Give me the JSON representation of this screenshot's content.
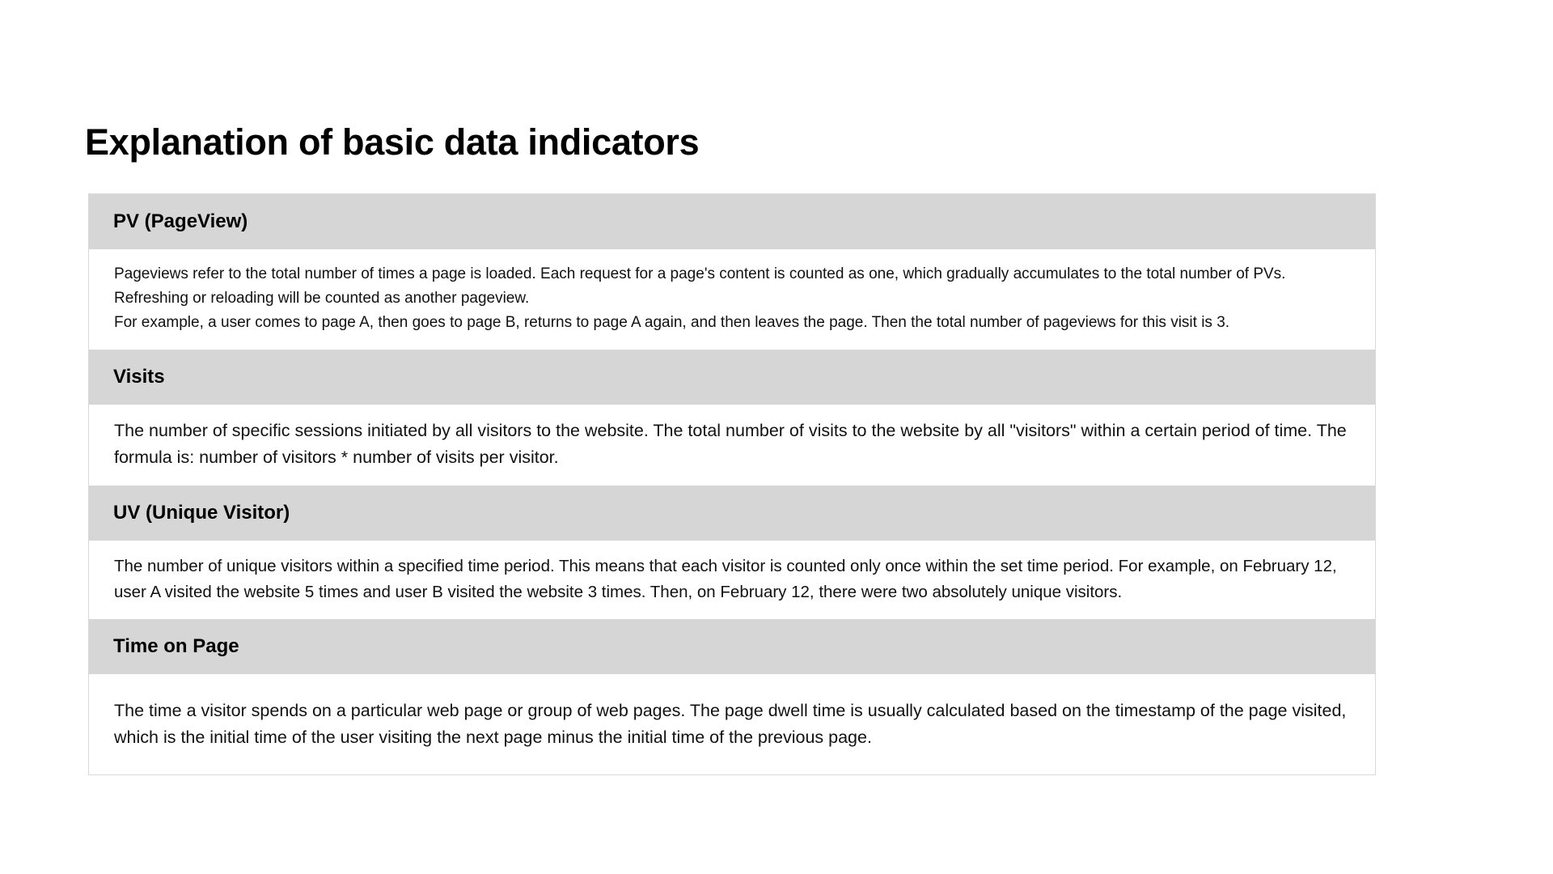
{
  "page": {
    "title": "Explanation of basic data indicators"
  },
  "indicators": [
    {
      "name": "PV (PageView)",
      "lines": [
        "Pageviews refer to the total number of times a page is loaded. Each request for a page's content is counted as one, which gradually accumulates to the total number of PVs.",
        "Refreshing or reloading will be counted as another pageview.",
        "For example, a user comes to page A, then goes to page B, returns to page A again, and then leaves the page. Then the total number of pageviews for this visit is 3."
      ]
    },
    {
      "name": "Visits",
      "lines": [
        "The number of specific sessions initiated by all visitors to the website. The total number of visits to the website by all \"visitors\" within a certain period of time. The formula is: number of visitors * number of visits per visitor."
      ]
    },
    {
      "name": "UV (Unique Visitor)",
      "lines": [
        "The number of unique visitors within a specified time period. This means that each visitor is counted only once within the set time period. For example, on February 12, user A visited the website 5 times and user B visited the website 3 times. Then, on February 12, there were two absolutely unique visitors."
      ]
    },
    {
      "name": "Time on Page",
      "lines": [
        "The time a visitor spends on a particular web page or group of web pages. The page dwell time is usually calculated based on the timestamp of the page visited, which is the initial time of the user visiting the next page minus the initial time of the previous page."
      ]
    }
  ]
}
